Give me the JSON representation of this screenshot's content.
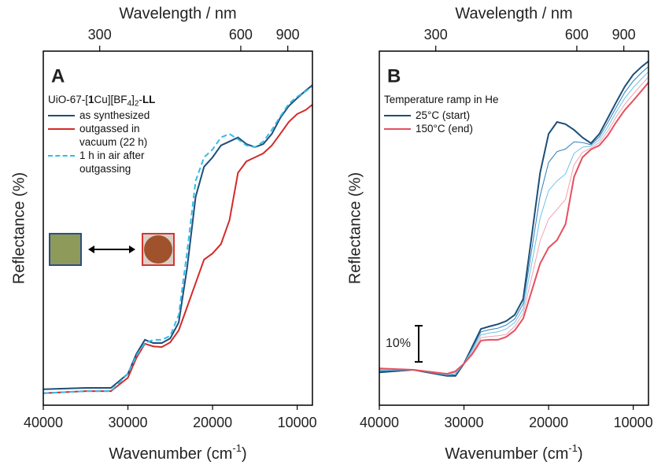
{
  "chart_data": [
    {
      "type": "line",
      "panel": "A",
      "x2_label": "Wavelength / nm",
      "x2ticks": [
        300,
        600,
        900
      ],
      "x_label_parts": [
        {
          "text": "Wavenumber (cm"
        },
        {
          "text": "-1",
          "sup": true
        },
        {
          "text": ")"
        }
      ],
      "y_label": "Reflectance (%)",
      "xlim": [
        40000,
        8200
      ],
      "xticks": [
        40000,
        30000,
        20000,
        10000
      ],
      "ylim": [
        0,
        98
      ],
      "legend_title_parts": [
        {
          "text": "UiO-67-["
        },
        {
          "text": "1",
          "bold": true
        },
        {
          "text": "Cu][BF"
        },
        {
          "text": "4",
          "sub": true
        },
        {
          "text": "]"
        },
        {
          "text": "2",
          "sub": true
        },
        {
          "text": "-"
        },
        {
          "text": "LL",
          "bold": true
        }
      ],
      "x": [
        40000,
        35000,
        32000,
        30000,
        29000,
        28000,
        27000,
        26000,
        25000,
        24000,
        23000,
        22000,
        21000,
        20000,
        19000,
        18000,
        17000,
        16000,
        15000,
        14000,
        13000,
        12000,
        11000,
        10000,
        9000,
        8200
      ],
      "series": [
        {
          "name": "as synthesized",
          "color": "#1f4e79",
          "dashed": false,
          "values": [
            4.4,
            4.8,
            4.8,
            8.7,
            14.2,
            18.1,
            17.2,
            17.2,
            18.5,
            22.9,
            38.1,
            57.7,
            66.0,
            68.6,
            71.9,
            73.0,
            74.1,
            72.3,
            71.4,
            72.3,
            75.1,
            79.5,
            82.8,
            85.0,
            87.1,
            88.6
          ]
        },
        {
          "name": "outgassed in vacuum (22 h)",
          "color": "#d42a2a",
          "dashed": false,
          "values": [
            3.3,
            3.9,
            3.9,
            7.6,
            13.1,
            17.0,
            16.3,
            16.1,
            17.4,
            20.7,
            27.2,
            33.8,
            40.3,
            42.0,
            44.6,
            51.2,
            64.3,
            67.5,
            68.6,
            69.7,
            71.9,
            75.1,
            78.4,
            80.6,
            81.7,
            83.2
          ]
        },
        {
          "name": "1 h in air after outgassing",
          "color": "#33bbe8",
          "dashed": true,
          "values": [
            3.3,
            3.9,
            3.9,
            8.7,
            13.7,
            17.2,
            18.1,
            18.1,
            19.2,
            25.0,
            42.5,
            62.1,
            68.6,
            70.8,
            74.1,
            75.1,
            73.6,
            71.9,
            71.4,
            73.0,
            76.2,
            79.9,
            83.4,
            85.4,
            86.9,
            88.2
          ]
        }
      ]
    },
    {
      "type": "line",
      "panel": "B",
      "x2_label": "Wavelength / nm",
      "x2ticks": [
        300,
        600,
        900
      ],
      "x_label_parts": [
        {
          "text": "Wavenumber (cm"
        },
        {
          "text": "-1",
          "sup": true
        },
        {
          "text": ")"
        }
      ],
      "y_label": "Reflectance (%)",
      "xlim": [
        40000,
        8200
      ],
      "xticks": [
        40000,
        30000,
        20000,
        10000
      ],
      "ylim": [
        0,
        98
      ],
      "legend_title": "Temperature ramp in He",
      "scale_bar": {
        "label": "10%",
        "value": 10,
        "y0": 12
      },
      "x": [
        40000,
        36000,
        32000,
        31000,
        30000,
        29000,
        28000,
        27000,
        26000,
        25000,
        24000,
        23000,
        22000,
        21000,
        20000,
        19000,
        18000,
        17000,
        16000,
        15000,
        14000,
        13000,
        12000,
        11000,
        10000,
        9000,
        8200
      ],
      "series": [
        {
          "name": "25°C (start)",
          "color": "#1b4f7a",
          "values": [
            9.1,
            9.8,
            8.1,
            8.1,
            11.5,
            16.3,
            21.1,
            21.8,
            22.4,
            23.3,
            25.0,
            29.4,
            46.8,
            64.3,
            75.1,
            78.4,
            77.8,
            76.2,
            74.1,
            72.5,
            75.1,
            79.5,
            83.9,
            88.2,
            91.5,
            93.7,
            95.2
          ]
        },
        {
          "color": "#2f7fb5",
          "values": [
            9.4,
            9.8,
            8.3,
            8.4,
            11.5,
            15.8,
            20.3,
            20.9,
            21.3,
            22.2,
            23.9,
            28.1,
            43.0,
            58.0,
            67.2,
            70.2,
            70.9,
            72.9,
            72.7,
            72.1,
            74.3,
            78.3,
            82.5,
            86.6,
            89.7,
            92.1,
            93.7
          ]
        },
        {
          "color": "#6cc3e8",
          "values": [
            9.7,
            9.8,
            8.4,
            8.8,
            11.5,
            15.3,
            19.5,
            20.0,
            20.3,
            21.1,
            22.9,
            26.7,
            39.2,
            51.8,
            59.4,
            62.1,
            64.0,
            69.7,
            71.4,
            71.7,
            73.5,
            77.1,
            81.2,
            85.0,
            87.9,
            90.4,
            92.3
          ]
        },
        {
          "color": "#f2a0b0",
          "values": [
            9.9,
            9.8,
            8.6,
            9.1,
            11.5,
            14.7,
            18.7,
            19.0,
            19.2,
            19.6,
            21.8,
            25.4,
            35.4,
            45.5,
            51.5,
            54.2,
            57.0,
            66.5,
            70.0,
            71.2,
            72.7,
            75.9,
            79.9,
            83.3,
            86.1,
            88.8,
            90.8
          ]
        },
        {
          "name": "150°C (end)",
          "color": "#e5505e",
          "values": [
            10.2,
            9.8,
            8.7,
            9.4,
            11.5,
            14.2,
            17.9,
            18.1,
            18.1,
            18.9,
            20.7,
            24.0,
            31.6,
            39.2,
            43.6,
            45.7,
            50.1,
            63.2,
            68.6,
            70.8,
            71.9,
            74.7,
            78.4,
            81.7,
            84.3,
            87.1,
            89.3
          ]
        }
      ]
    }
  ]
}
